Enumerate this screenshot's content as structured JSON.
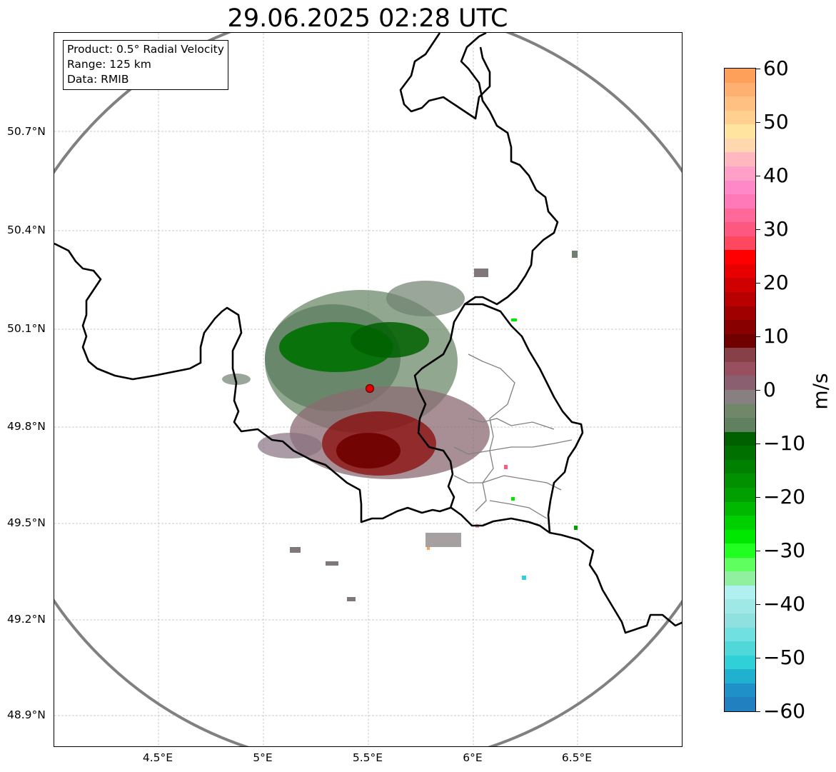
{
  "title": "29.06.2025 02:28 UTC",
  "info_box": {
    "product": "Product: 0.5° Radial Velocity",
    "range": "Range: 125 km",
    "data": "Data: RMIB"
  },
  "lat_labels": [
    "50.7°N",
    "50.4°N",
    "50.1°N",
    "49.8°N",
    "49.5°N",
    "49.2°N",
    "48.9°N"
  ],
  "lon_labels": [
    "4.5°E",
    "5°E",
    "5.5°E",
    "6°E",
    "6.5°E"
  ],
  "colorbar": {
    "unit": "m/s",
    "ticks": [
      "60",
      "50",
      "40",
      "30",
      "20",
      "10",
      "0",
      "−10",
      "−20",
      "−30",
      "−40",
      "−50",
      "−60"
    ],
    "min": -60,
    "max": 60,
    "colors_top_to_bottom": [
      "#ffa05a",
      "#ffb070",
      "#ffc080",
      "#ffd090",
      "#ffe4a0",
      "#ffd8b0",
      "#ffb8c0",
      "#ffa0c8",
      "#ff88c8",
      "#ff78b8",
      "#ff6898",
      "#ff5880",
      "#ff4860",
      "#ff0000",
      "#e80000",
      "#d00000",
      "#b80000",
      "#a00000",
      "#880000",
      "#700000",
      "#884048",
      "#985060",
      "#8a6070",
      "#888080",
      "#708868",
      "#608060",
      "#006000",
      "#007000",
      "#008000",
      "#009000",
      "#00a000",
      "#00b800",
      "#00d000",
      "#00e800",
      "#20ff20",
      "#60ff60",
      "#90f0a0",
      "#b0f0f0",
      "#a0e8e8",
      "#90e0e0",
      "#70e0e0",
      "#50d8d8",
      "#30d0d8",
      "#20b0d0",
      "#2090c8",
      "#2080c0"
    ]
  },
  "radar": {
    "name": "radar-site-marker",
    "color": "#ff0000"
  },
  "colors": {
    "range_ring": "#808080",
    "border": "#000000",
    "admin_border": "#808080"
  }
}
